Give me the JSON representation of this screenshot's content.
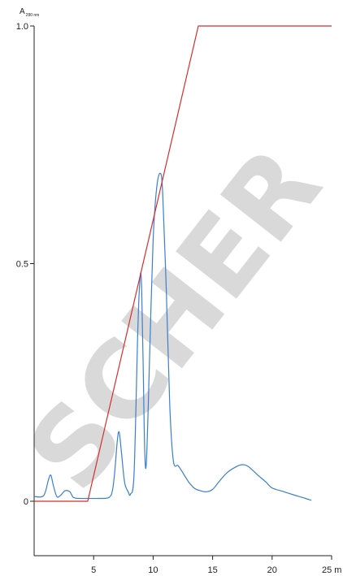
{
  "chart_data": {
    "type": "line",
    "ylabel_main": "A",
    "ylabel_sub": "280 nm",
    "xlabel": "",
    "x_ticks": [
      {
        "value": 5,
        "label": "5"
      },
      {
        "value": 10,
        "label": "10"
      },
      {
        "value": 15,
        "label": "15"
      },
      {
        "value": 20,
        "label": "20"
      },
      {
        "value": 25,
        "label": "25 m"
      }
    ],
    "y_ticks": [
      {
        "value": 0,
        "label": "0"
      },
      {
        "value": 0.5,
        "label": "0.5"
      },
      {
        "value": 1.0,
        "label": "1.0"
      }
    ],
    "xlim": [
      0,
      25
    ],
    "ylim": [
      -0.11,
      1.0
    ],
    "watermark": "SCHER",
    "colors": {
      "absorbance": "#3a7fd0",
      "gradient": "#d32f2f",
      "watermark": "#d9d9d9",
      "axis": "#222222"
    },
    "series": [
      {
        "key": "absorbance",
        "points": [
          [
            0.0,
            0.01
          ],
          [
            0.8,
            0.012
          ],
          [
            1.2,
            0.045
          ],
          [
            1.4,
            0.055
          ],
          [
            1.6,
            0.035
          ],
          [
            1.9,
            0.01
          ],
          [
            2.2,
            0.012
          ],
          [
            2.6,
            0.022
          ],
          [
            3.0,
            0.02
          ],
          [
            3.3,
            0.008
          ],
          [
            3.8,
            0.006
          ],
          [
            4.5,
            0.006
          ],
          [
            5.5,
            0.006
          ],
          [
            6.3,
            0.008
          ],
          [
            6.6,
            0.025
          ],
          [
            6.8,
            0.07
          ],
          [
            7.0,
            0.13
          ],
          [
            7.15,
            0.145
          ],
          [
            7.35,
            0.1
          ],
          [
            7.6,
            0.04
          ],
          [
            7.9,
            0.02
          ],
          [
            8.1,
            0.015
          ],
          [
            8.4,
            0.06
          ],
          [
            8.7,
            0.35
          ],
          [
            8.85,
            0.45
          ],
          [
            9.0,
            0.47
          ],
          [
            9.15,
            0.3
          ],
          [
            9.3,
            0.1
          ],
          [
            9.45,
            0.09
          ],
          [
            9.7,
            0.3
          ],
          [
            10.0,
            0.55
          ],
          [
            10.3,
            0.66
          ],
          [
            10.6,
            0.69
          ],
          [
            10.8,
            0.65
          ],
          [
            11.1,
            0.45
          ],
          [
            11.4,
            0.2
          ],
          [
            11.7,
            0.085
          ],
          [
            12.1,
            0.075
          ],
          [
            12.5,
            0.06
          ],
          [
            13.0,
            0.04
          ],
          [
            13.5,
            0.027
          ],
          [
            14.0,
            0.022
          ],
          [
            14.5,
            0.02
          ],
          [
            15.0,
            0.025
          ],
          [
            15.5,
            0.04
          ],
          [
            16.2,
            0.06
          ],
          [
            17.0,
            0.073
          ],
          [
            17.5,
            0.077
          ],
          [
            18.0,
            0.073
          ],
          [
            18.8,
            0.055
          ],
          [
            19.5,
            0.04
          ],
          [
            20.0,
            0.028
          ],
          [
            21.0,
            0.02
          ],
          [
            22.0,
            0.012
          ],
          [
            22.8,
            0.006
          ],
          [
            23.3,
            0.002
          ]
        ]
      },
      {
        "key": "gradient",
        "points": [
          [
            0.0,
            0.0
          ],
          [
            4.5,
            0.0
          ],
          [
            13.8,
            1.0
          ],
          [
            25.0,
            1.0
          ]
        ]
      }
    ]
  }
}
